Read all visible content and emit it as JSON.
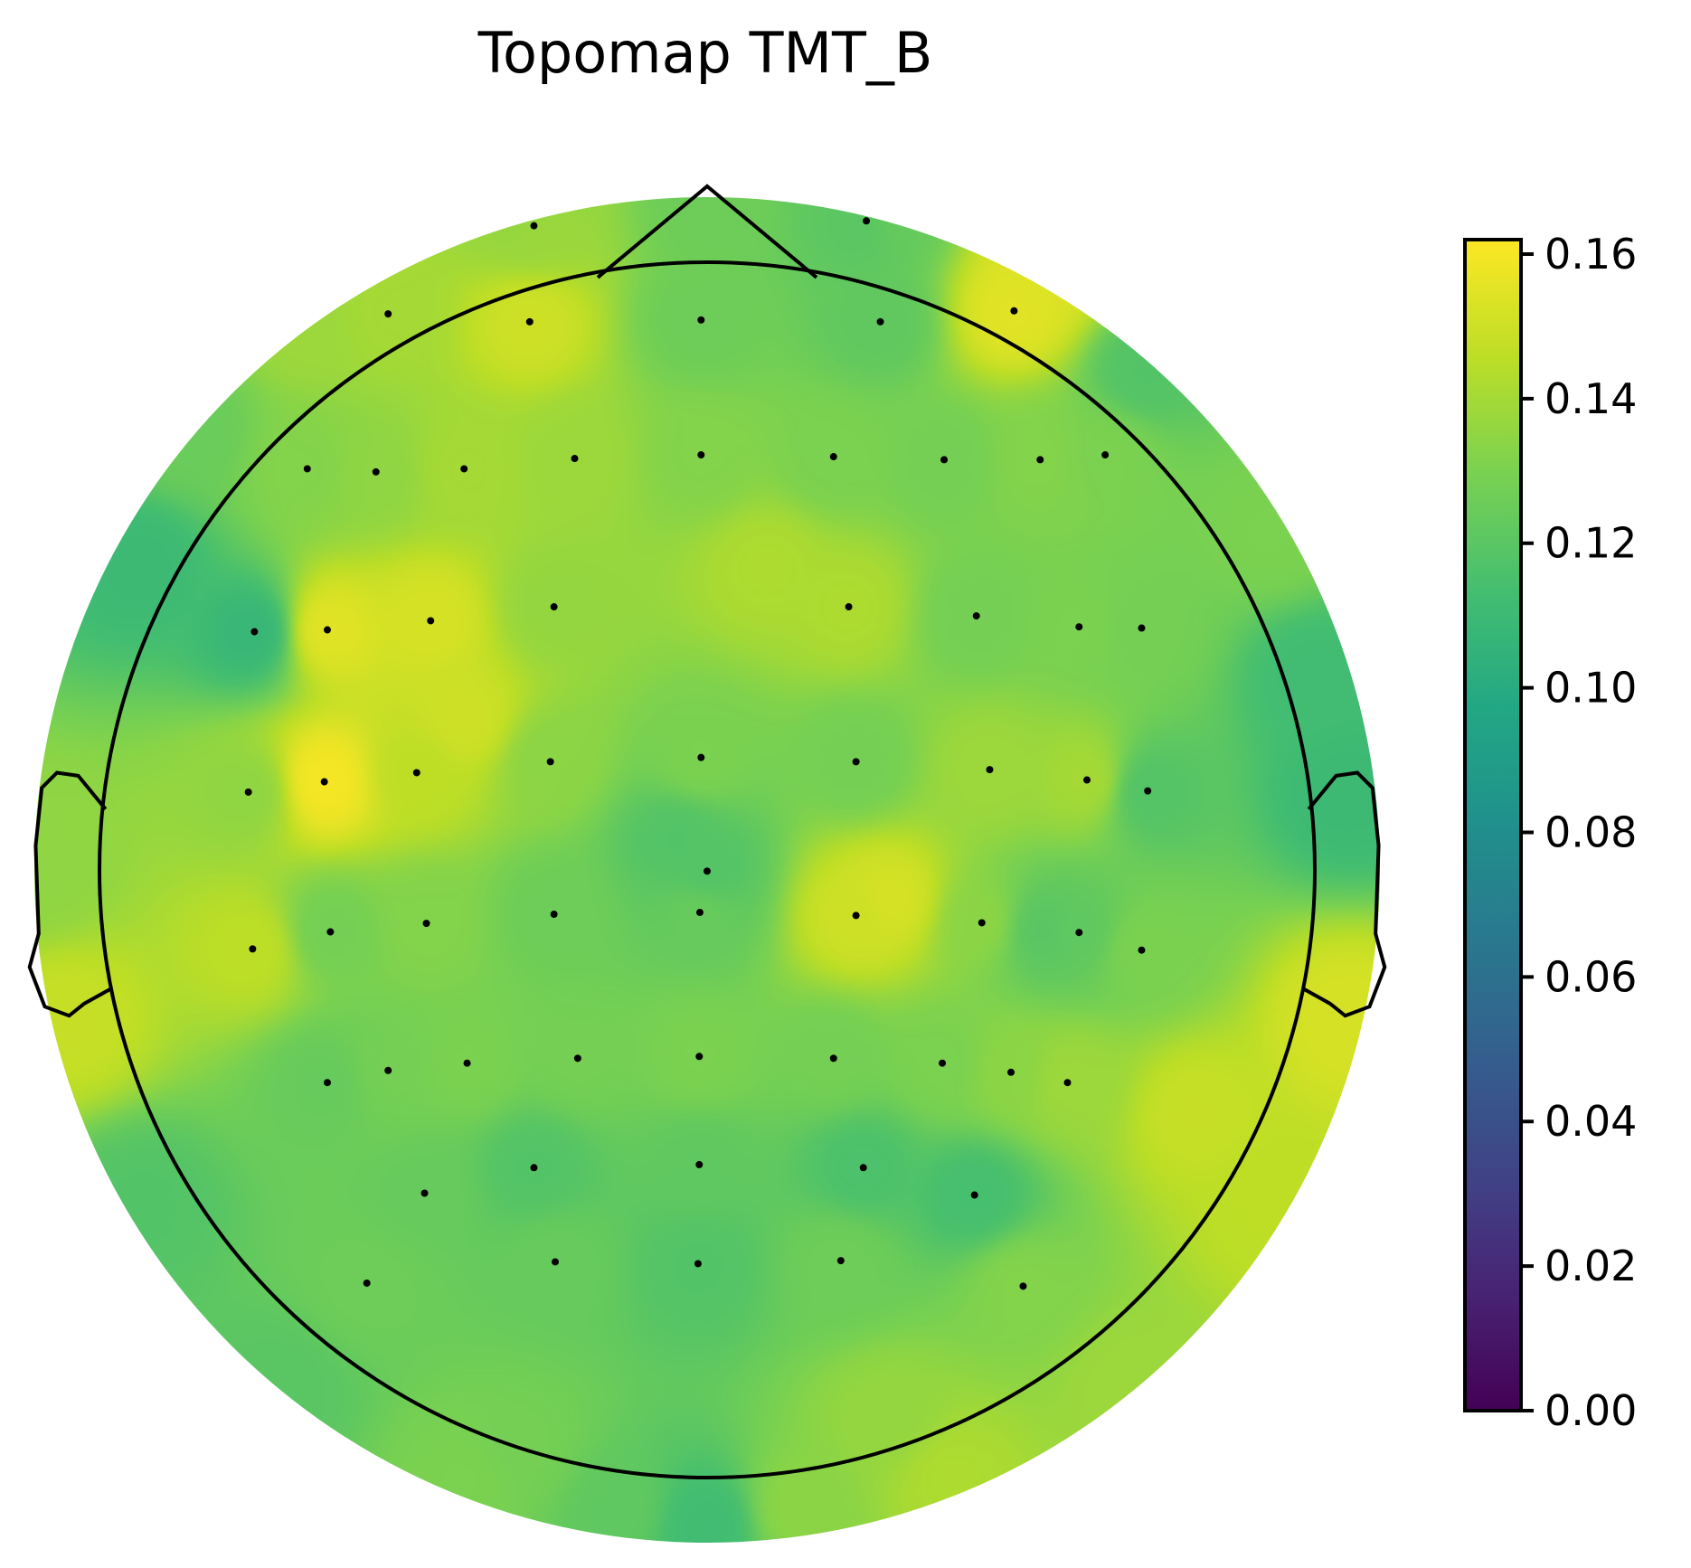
{
  "chart_data": {
    "type": "heatmap",
    "subtype": "topomap",
    "title": "Topomap TMT_B",
    "colormap": "viridis",
    "colorbar": {
      "vmin": 0.0,
      "vmax": 0.162,
      "ticks": [
        0.0,
        0.02,
        0.04,
        0.06,
        0.08,
        0.1,
        0.12,
        0.14,
        0.16
      ],
      "tick_labels": [
        "0.00",
        "0.02",
        "0.04",
        "0.06",
        "0.08",
        "0.10",
        "0.12",
        "0.14",
        "0.16"
      ],
      "placement": "right"
    },
    "head_outline": {
      "nose": true,
      "ears": true
    },
    "sensors": [
      {
        "x": -0.285,
        "y": 1.06,
        "v": 0.138
      },
      {
        "x": 0.262,
        "y": 1.068,
        "v": 0.12
      },
      {
        "x": -0.525,
        "y": 0.915,
        "v": 0.14
      },
      {
        "x": -0.292,
        "y": 0.902,
        "v": 0.15
      },
      {
        "x": -0.01,
        "y": 0.905,
        "v": 0.126
      },
      {
        "x": 0.285,
        "y": 0.902,
        "v": 0.122
      },
      {
        "x": 0.505,
        "y": 0.92,
        "v": 0.155
      },
      {
        "x": -0.658,
        "y": 0.66,
        "v": 0.132
      },
      {
        "x": -0.545,
        "y": 0.655,
        "v": 0.135
      },
      {
        "x": -0.4,
        "y": 0.66,
        "v": 0.14
      },
      {
        "x": -0.218,
        "y": 0.677,
        "v": 0.138
      },
      {
        "x": -0.01,
        "y": 0.683,
        "v": 0.132
      },
      {
        "x": 0.208,
        "y": 0.68,
        "v": 0.13
      },
      {
        "x": 0.39,
        "y": 0.675,
        "v": 0.128
      },
      {
        "x": 0.548,
        "y": 0.675,
        "v": 0.132
      },
      {
        "x": 0.655,
        "y": 0.683,
        "v": 0.13
      },
      {
        "x": -0.745,
        "y": 0.392,
        "v": 0.108
      },
      {
        "x": -0.625,
        "y": 0.395,
        "v": 0.155
      },
      {
        "x": -0.455,
        "y": 0.41,
        "v": 0.152
      },
      {
        "x": -0.252,
        "y": 0.433,
        "v": 0.136
      },
      {
        "x": 0.233,
        "y": 0.433,
        "v": 0.142
      },
      {
        "x": 0.443,
        "y": 0.418,
        "v": 0.128
      },
      {
        "x": 0.612,
        "y": 0.4,
        "v": 0.13
      },
      {
        "x": 0.715,
        "y": 0.398,
        "v": 0.128
      },
      {
        "x": -0.755,
        "y": 0.128,
        "v": 0.135
      },
      {
        "x": -0.63,
        "y": 0.145,
        "v": 0.16
      },
      {
        "x": -0.478,
        "y": 0.16,
        "v": 0.146
      },
      {
        "x": -0.258,
        "y": 0.178,
        "v": 0.134
      },
      {
        "x": -0.01,
        "y": 0.185,
        "v": 0.13
      },
      {
        "x": 0.245,
        "y": 0.178,
        "v": 0.128
      },
      {
        "x": 0.465,
        "y": 0.165,
        "v": 0.138
      },
      {
        "x": 0.625,
        "y": 0.148,
        "v": 0.14
      },
      {
        "x": 0.725,
        "y": 0.13,
        "v": 0.118
      },
      {
        "x": 0.0,
        "y": -0.002,
        "v": 0.118
      },
      {
        "x": -0.748,
        "y": -0.13,
        "v": 0.146
      },
      {
        "x": -0.62,
        "y": -0.102,
        "v": 0.128
      },
      {
        "x": -0.462,
        "y": -0.088,
        "v": 0.132
      },
      {
        "x": -0.252,
        "y": -0.073,
        "v": 0.126
      },
      {
        "x": -0.012,
        "y": -0.07,
        "v": 0.124
      },
      {
        "x": 0.245,
        "y": -0.075,
        "v": 0.15
      },
      {
        "x": 0.452,
        "y": -0.087,
        "v": 0.134
      },
      {
        "x": 0.612,
        "y": -0.103,
        "v": 0.122
      },
      {
        "x": 0.715,
        "y": -0.132,
        "v": 0.13
      },
      {
        "x": -0.625,
        "y": -0.35,
        "v": 0.124
      },
      {
        "x": -0.525,
        "y": -0.33,
        "v": 0.128
      },
      {
        "x": -0.395,
        "y": -0.318,
        "v": 0.13
      },
      {
        "x": -0.213,
        "y": -0.31,
        "v": 0.128
      },
      {
        "x": -0.013,
        "y": -0.307,
        "v": 0.13
      },
      {
        "x": 0.208,
        "y": -0.31,
        "v": 0.128
      },
      {
        "x": 0.387,
        "y": -0.318,
        "v": 0.13
      },
      {
        "x": 0.5,
        "y": -0.333,
        "v": 0.134
      },
      {
        "x": 0.593,
        "y": -0.35,
        "v": 0.138
      },
      {
        "x": -0.285,
        "y": -0.49,
        "v": 0.118
      },
      {
        "x": -0.013,
        "y": -0.485,
        "v": 0.122
      },
      {
        "x": 0.257,
        "y": -0.49,
        "v": 0.116
      },
      {
        "x": -0.465,
        "y": -0.532,
        "v": 0.124
      },
      {
        "x": 0.44,
        "y": -0.535,
        "v": 0.114
      },
      {
        "x": -0.25,
        "y": -0.645,
        "v": 0.124
      },
      {
        "x": -0.015,
        "y": -0.648,
        "v": 0.118
      },
      {
        "x": 0.22,
        "y": -0.643,
        "v": 0.126
      },
      {
        "x": -0.56,
        "y": -0.68,
        "v": 0.126
      },
      {
        "x": 0.52,
        "y": -0.685,
        "v": 0.132
      }
    ],
    "anchors": [
      {
        "x": -1.1,
        "y": 0.0,
        "v": 0.135
      },
      {
        "x": -1.05,
        "y": -0.25,
        "v": 0.148
      },
      {
        "x": -0.93,
        "y": 0.5,
        "v": 0.11
      },
      {
        "x": -0.85,
        "y": 0.72,
        "v": 0.125
      },
      {
        "x": -0.65,
        "y": 0.9,
        "v": 0.138
      },
      {
        "x": -0.3,
        "y": 1.08,
        "v": 0.135
      },
      {
        "x": 0.0,
        "y": 1.1,
        "v": 0.126
      },
      {
        "x": 0.3,
        "y": 1.08,
        "v": 0.124
      },
      {
        "x": 0.55,
        "y": 0.98,
        "v": 0.154
      },
      {
        "x": 0.72,
        "y": 0.82,
        "v": 0.118
      },
      {
        "x": 0.93,
        "y": 0.55,
        "v": 0.13
      },
      {
        "x": 1.0,
        "y": 0.32,
        "v": 0.112
      },
      {
        "x": 1.05,
        "y": 0.13,
        "v": 0.11
      },
      {
        "x": 1.05,
        "y": -0.25,
        "v": 0.152
      },
      {
        "x": 0.93,
        "y": -0.55,
        "v": 0.146
      },
      {
        "x": 0.7,
        "y": -0.85,
        "v": 0.138
      },
      {
        "x": 0.4,
        "y": -1.0,
        "v": 0.142
      },
      {
        "x": 0.15,
        "y": -1.05,
        "v": 0.134
      },
      {
        "x": 0.0,
        "y": -1.08,
        "v": 0.112
      },
      {
        "x": -0.15,
        "y": -1.05,
        "v": 0.122
      },
      {
        "x": -0.4,
        "y": -1.0,
        "v": 0.13
      },
      {
        "x": -0.7,
        "y": -0.85,
        "v": 0.12
      },
      {
        "x": -0.93,
        "y": -0.55,
        "v": 0.118
      },
      {
        "x": -0.3,
        "y": -0.95,
        "v": 0.128
      },
      {
        "x": 0.3,
        "y": -0.9,
        "v": 0.136
      },
      {
        "x": -0.4,
        "y": 0.25,
        "v": 0.15
      },
      {
        "x": 0.1,
        "y": 0.5,
        "v": 0.142
      },
      {
        "x": -0.05,
        "y": 0.05,
        "v": 0.118
      },
      {
        "x": 0.3,
        "y": -0.05,
        "v": 0.152
      },
      {
        "x": 0.55,
        "y": -0.1,
        "v": 0.12
      },
      {
        "x": 0.8,
        "y": -0.4,
        "v": 0.148
      }
    ]
  }
}
